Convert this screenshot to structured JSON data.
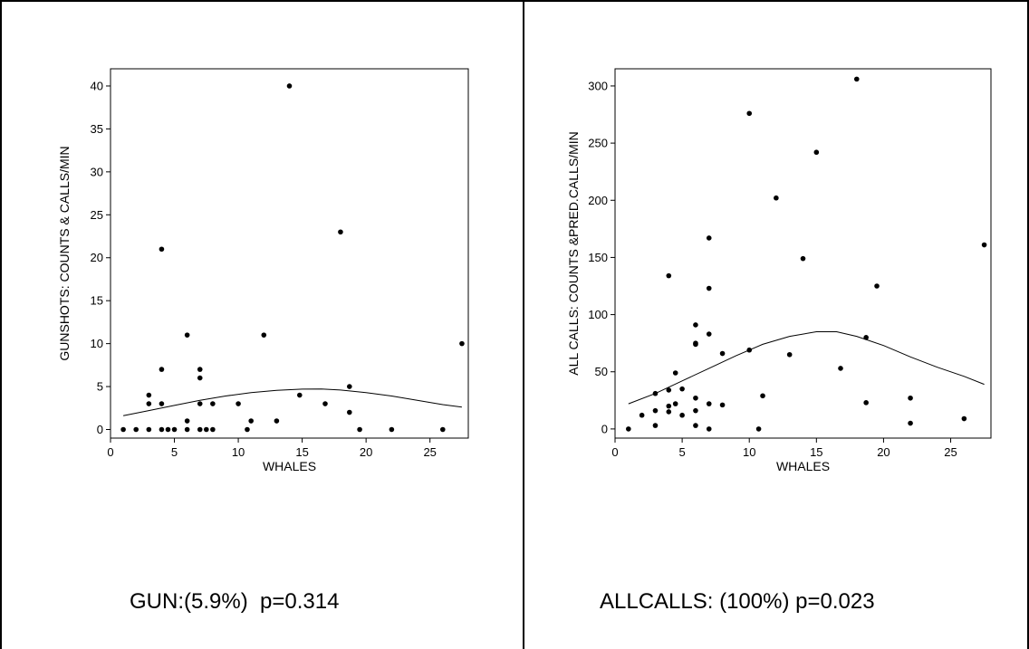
{
  "captions": {
    "left": "GUN:(5.9%)  p=0.314",
    "right": "ALLCALLS: (100%) p=0.023"
  },
  "chart_data": [
    {
      "type": "scatter",
      "xlabel": "WHALES",
      "ylabel": "GUNSHOTS: COUNTS & CALLS/MIN",
      "xlim": [
        0,
        28
      ],
      "ylim": [
        -1,
        42
      ],
      "xticks": [
        0,
        5,
        10,
        15,
        20,
        25
      ],
      "yticks": [
        0,
        5,
        10,
        15,
        20,
        25,
        30,
        35,
        40
      ],
      "grid": false,
      "points": [
        [
          1,
          0
        ],
        [
          2,
          0
        ],
        [
          3,
          0
        ],
        [
          3,
          3
        ],
        [
          3,
          4
        ],
        [
          4,
          21
        ],
        [
          4,
          7
        ],
        [
          4,
          3
        ],
        [
          4,
          0
        ],
        [
          4.5,
          0
        ],
        [
          5,
          0
        ],
        [
          6,
          11
        ],
        [
          6,
          1
        ],
        [
          6,
          0
        ],
        [
          7,
          7
        ],
        [
          7,
          6
        ],
        [
          7,
          3
        ],
        [
          7,
          0
        ],
        [
          7.5,
          0
        ],
        [
          8,
          3
        ],
        [
          8,
          0
        ],
        [
          10,
          3
        ],
        [
          10.7,
          0
        ],
        [
          11,
          1
        ],
        [
          12,
          11
        ],
        [
          13,
          1
        ],
        [
          14,
          40
        ],
        [
          14.8,
          4
        ],
        [
          16.8,
          3
        ],
        [
          18,
          23
        ],
        [
          18.7,
          5
        ],
        [
          18.7,
          2
        ],
        [
          19.5,
          0
        ],
        [
          22,
          0
        ],
        [
          26,
          0
        ],
        [
          27.5,
          10
        ]
      ],
      "fit_curve": [
        [
          1,
          1.6
        ],
        [
          3,
          2.2
        ],
        [
          5,
          2.8
        ],
        [
          7,
          3.4
        ],
        [
          9,
          3.9
        ],
        [
          11,
          4.3
        ],
        [
          13,
          4.55
        ],
        [
          15,
          4.7
        ],
        [
          16.5,
          4.72
        ],
        [
          18,
          4.6
        ],
        [
          20,
          4.3
        ],
        [
          22,
          3.9
        ],
        [
          24,
          3.4
        ],
        [
          26,
          2.9
        ],
        [
          27.5,
          2.6
        ]
      ],
      "series_color": "#000000"
    },
    {
      "type": "scatter",
      "xlabel": "WHALES",
      "ylabel": "ALL CALLS: COUNTS &PRED.CALLS/MIN",
      "xlim": [
        0,
        28
      ],
      "ylim": [
        -8,
        315
      ],
      "xticks": [
        0,
        5,
        10,
        15,
        20,
        25
      ],
      "yticks": [
        0,
        50,
        100,
        150,
        200,
        250,
        300
      ],
      "grid": false,
      "points": [
        [
          1,
          0
        ],
        [
          2,
          12
        ],
        [
          3,
          31
        ],
        [
          3,
          16
        ],
        [
          3,
          3
        ],
        [
          4,
          134
        ],
        [
          4,
          34
        ],
        [
          4,
          20
        ],
        [
          4,
          15
        ],
        [
          4.5,
          49
        ],
        [
          4.5,
          22
        ],
        [
          5,
          35
        ],
        [
          5,
          12
        ],
        [
          6,
          91
        ],
        [
          6,
          75
        ],
        [
          6,
          74
        ],
        [
          6,
          27
        ],
        [
          6,
          16
        ],
        [
          6,
          3
        ],
        [
          7,
          167
        ],
        [
          7,
          123
        ],
        [
          7,
          83
        ],
        [
          7,
          22
        ],
        [
          7,
          0
        ],
        [
          8,
          66
        ],
        [
          8,
          21
        ],
        [
          10,
          276
        ],
        [
          10,
          69
        ],
        [
          10.7,
          0
        ],
        [
          11,
          29
        ],
        [
          12,
          202
        ],
        [
          13,
          65
        ],
        [
          14,
          149
        ],
        [
          15,
          242
        ],
        [
          16.8,
          53
        ],
        [
          18,
          306
        ],
        [
          18.7,
          80
        ],
        [
          18.7,
          23
        ],
        [
          19.5,
          125
        ],
        [
          22,
          27
        ],
        [
          22,
          5
        ],
        [
          26,
          9
        ],
        [
          27.5,
          161
        ]
      ],
      "fit_curve": [
        [
          1,
          22
        ],
        [
          3,
          31
        ],
        [
          5,
          42
        ],
        [
          7,
          53
        ],
        [
          9,
          64
        ],
        [
          11,
          74
        ],
        [
          13,
          81
        ],
        [
          15,
          85
        ],
        [
          16.5,
          85
        ],
        [
          18,
          81
        ],
        [
          20,
          73
        ],
        [
          22,
          63
        ],
        [
          24,
          54
        ],
        [
          26,
          46
        ],
        [
          27.5,
          39
        ]
      ],
      "series_color": "#000000"
    }
  ]
}
